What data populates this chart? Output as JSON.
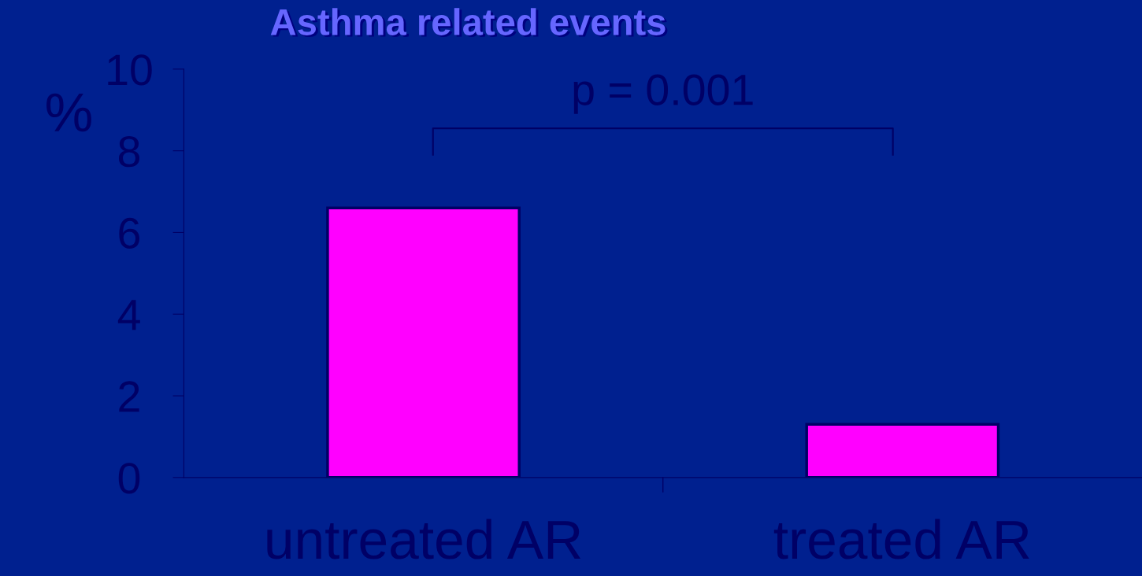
{
  "chart_data": {
    "type": "bar",
    "title": "Asthma related events",
    "ylabel": "%",
    "categories": [
      "untreated AR",
      "treated AR"
    ],
    "values": [
      6.6,
      1.3
    ],
    "color": "#ff00ff",
    "ylim": [
      0,
      10
    ],
    "yticks": [
      0,
      2,
      4,
      6,
      8,
      10
    ],
    "grid": false,
    "legend": false,
    "annotations": [
      "p = 0.001"
    ]
  }
}
